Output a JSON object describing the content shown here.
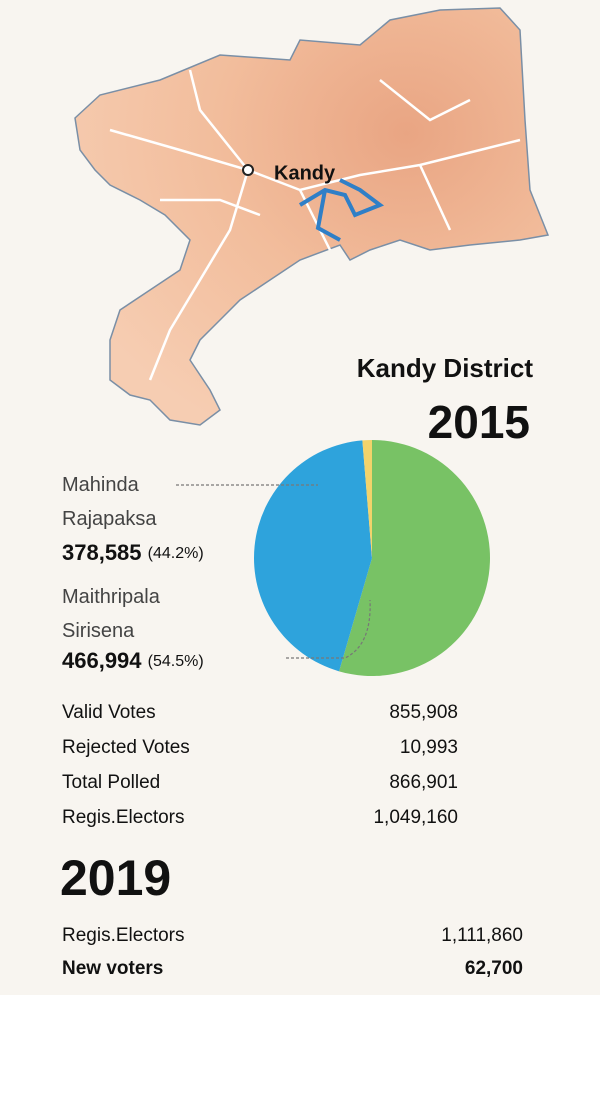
{
  "map": {
    "label": "Kandy"
  },
  "chart_data": {
    "type": "pie",
    "title": "Kandy District",
    "subtitle": "2015",
    "categories": [
      "Mahinda Rajapaksa",
      "Maithripala Sirisena",
      null
    ],
    "values": [
      44.2,
      54.5,
      1.3
    ],
    "value_labels": [
      "(44.2%)",
      "(54.5%)",
      null
    ],
    "vote_labels": [
      "378,585",
      "466,994",
      null
    ],
    "colors": [
      "#2ea3dc",
      "#78c265",
      "#f2d36b"
    ]
  },
  "stats_2015": {
    "rows": [
      [
        "Valid Votes",
        "855,908"
      ],
      [
        "Rejected Votes",
        "10,993"
      ],
      [
        "Total Polled",
        "866,901"
      ],
      [
        "Regis.Electors",
        "1,049,160"
      ]
    ]
  },
  "year_2019": {
    "title": "2019",
    "rows": [
      [
        "Regis.Electors",
        "1,111,860"
      ],
      [
        "New voters",
        "62,700"
      ]
    ]
  }
}
